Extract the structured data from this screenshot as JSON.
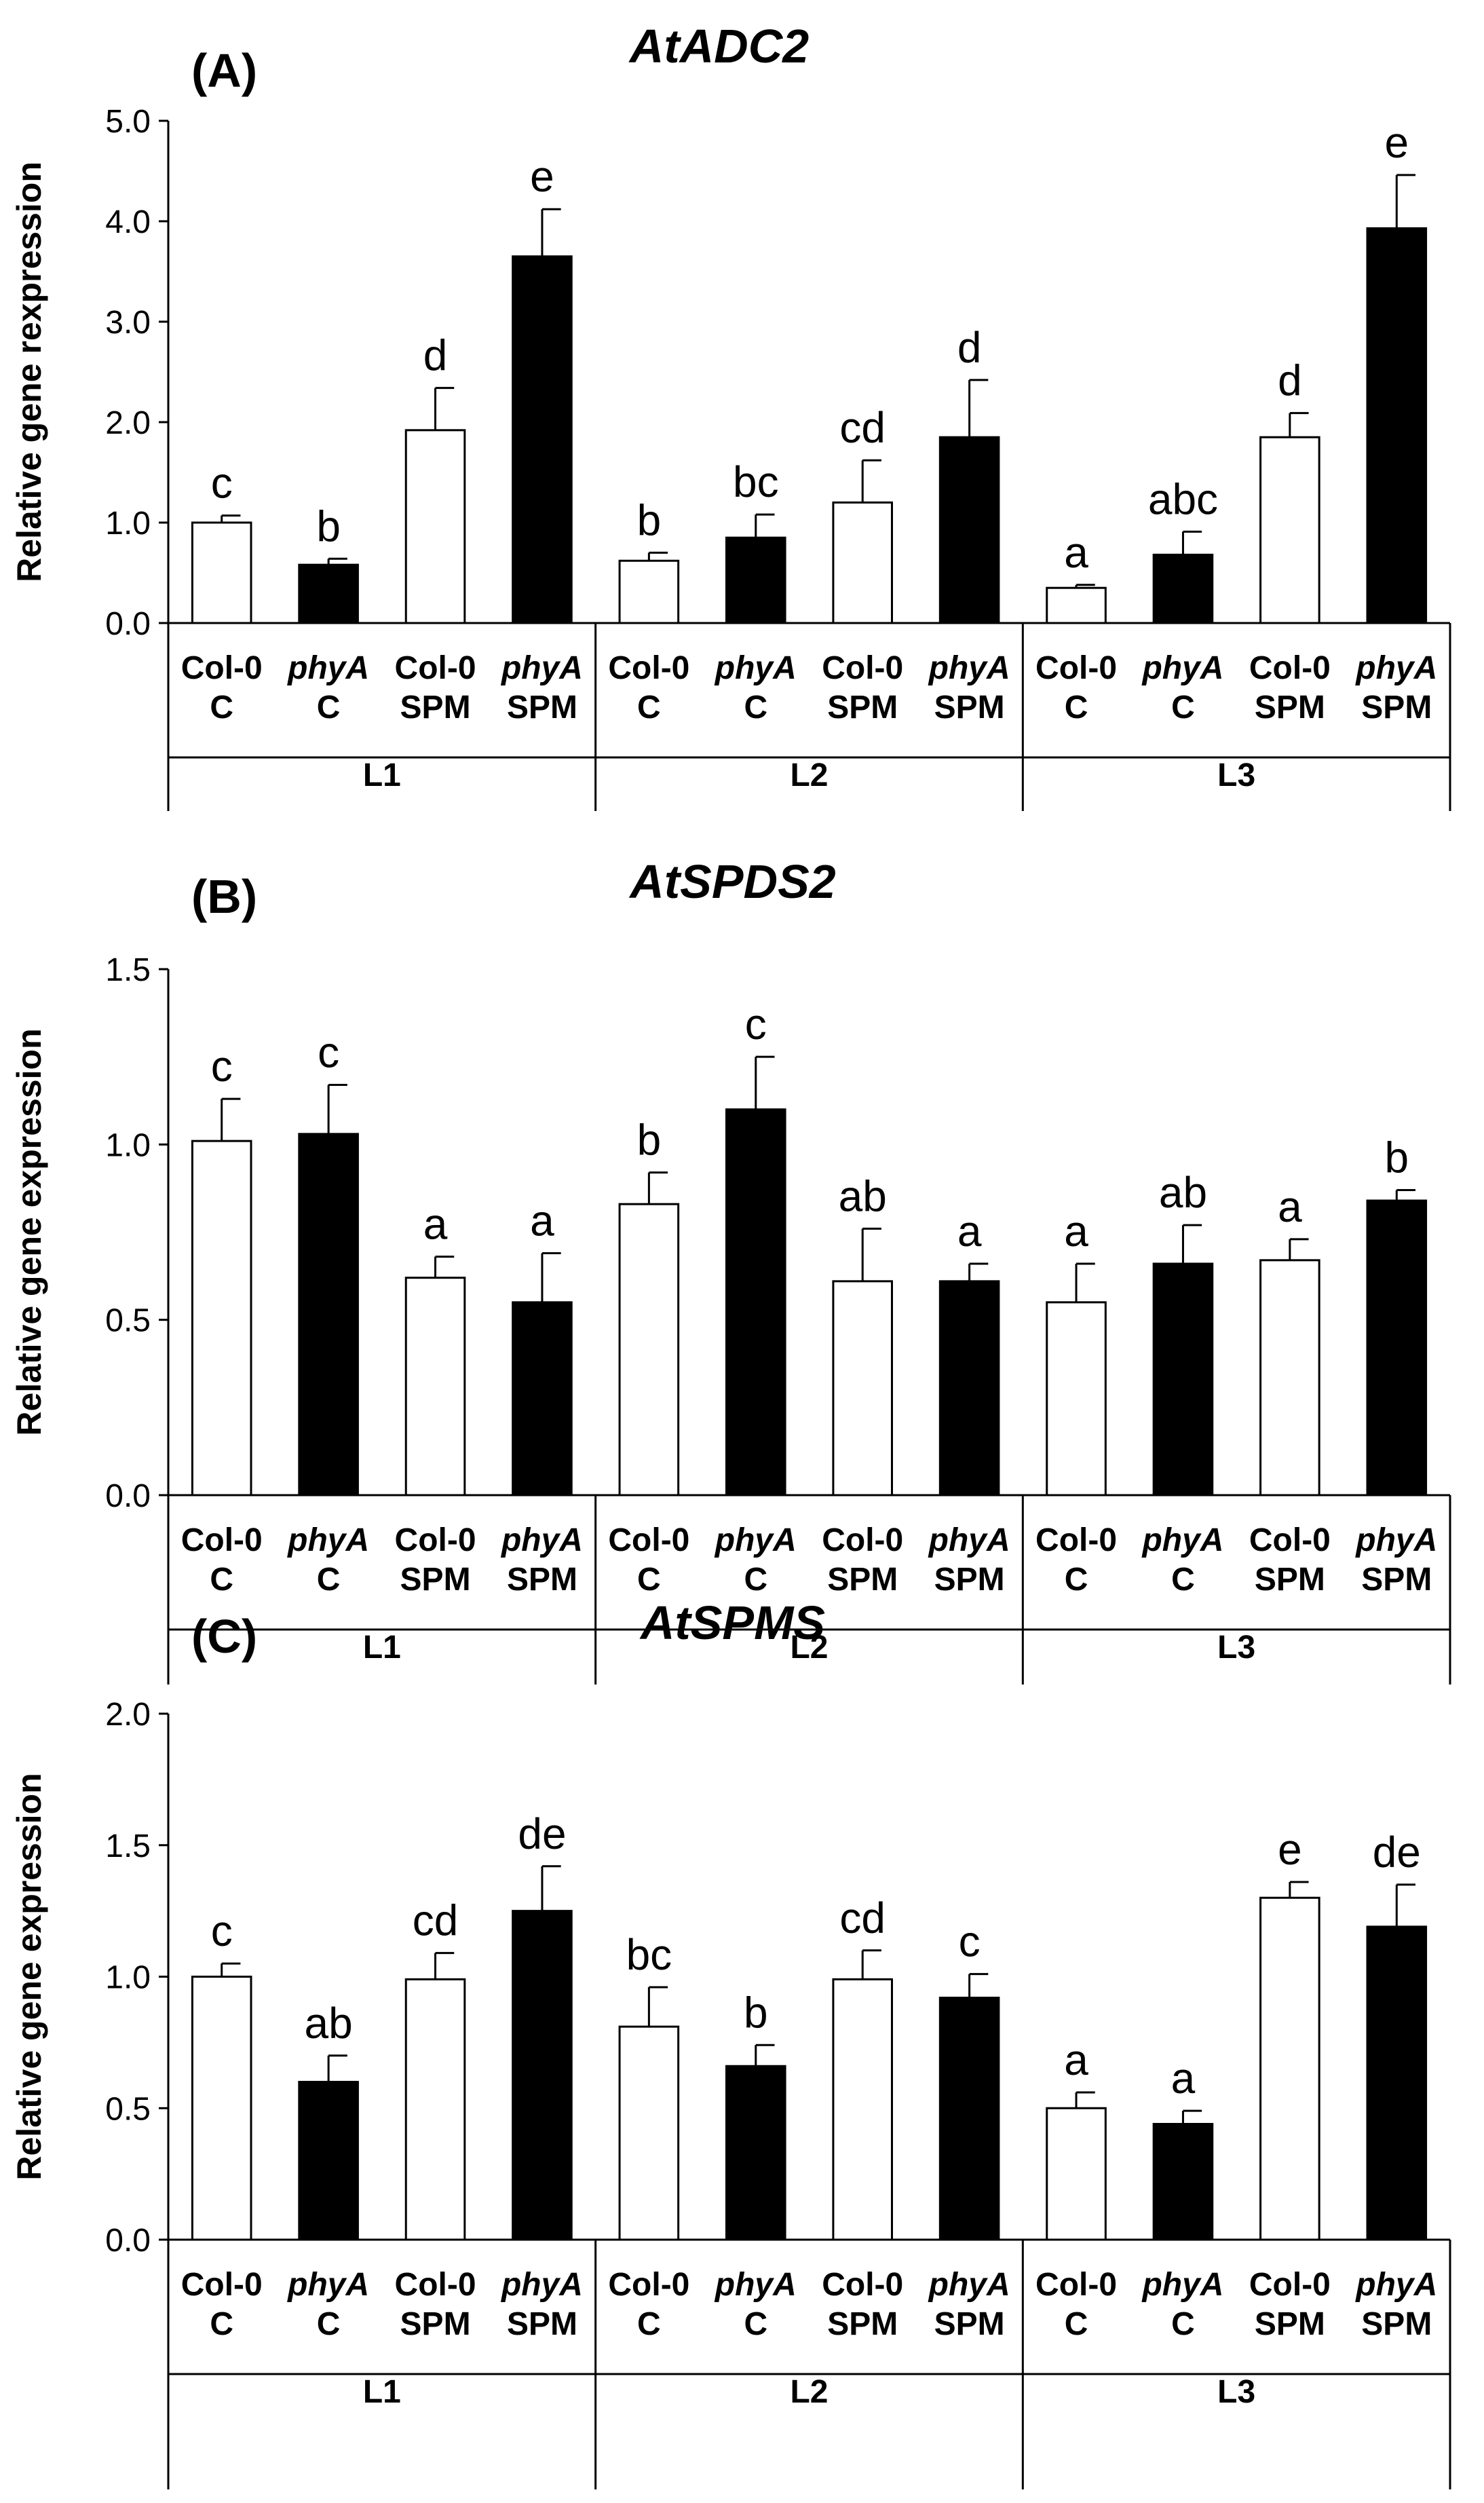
{
  "chart_data": [
    {
      "type": "bar",
      "panel_label": "(A)",
      "title": "AtADC2",
      "ylabel": "Relative gene rexpression",
      "ylim": [
        0,
        5
      ],
      "yticks": [
        "0.0",
        "1.0",
        "2.0",
        "3.0",
        "4.0",
        "5.0"
      ],
      "groups": [
        "L1",
        "L2",
        "L3"
      ],
      "categories": [
        {
          "genotype": "Col-0",
          "treatment": "C",
          "fill": "white"
        },
        {
          "genotype": "phyA",
          "treatment": "C",
          "fill": "black"
        },
        {
          "genotype": "Col-0",
          "treatment": "SPM",
          "fill": "white"
        },
        {
          "genotype": "phyA",
          "treatment": "SPM",
          "fill": "black"
        }
      ],
      "values": [
        [
          1.0,
          0.58,
          1.92,
          3.65
        ],
        [
          0.62,
          0.85,
          1.2,
          1.85
        ],
        [
          0.35,
          0.68,
          1.85,
          3.93
        ]
      ],
      "errors": [
        [
          0.07,
          0.06,
          0.42,
          0.47
        ],
        [
          0.08,
          0.23,
          0.42,
          0.57
        ],
        [
          0.03,
          0.23,
          0.24,
          0.53
        ]
      ],
      "letters": [
        [
          "c",
          "b",
          "d",
          "e"
        ],
        [
          "b",
          "bc",
          "cd",
          "d"
        ],
        [
          "a",
          "abc",
          "d",
          "e"
        ]
      ]
    },
    {
      "type": "bar",
      "panel_label": "(B)",
      "title": "AtSPDS2",
      "ylabel": "Relative gene expression",
      "ylim": [
        0,
        1.5
      ],
      "yticks": [
        "0.0",
        "0.5",
        "1.0",
        "1.5"
      ],
      "groups": [
        "L1",
        "L2",
        "L3"
      ],
      "categories": [
        {
          "genotype": "Col-0",
          "treatment": "C",
          "fill": "white"
        },
        {
          "genotype": "phyA",
          "treatment": "C",
          "fill": "black"
        },
        {
          "genotype": "Col-0",
          "treatment": "SPM",
          "fill": "white"
        },
        {
          "genotype": "phyA",
          "treatment": "SPM",
          "fill": "black"
        }
      ],
      "values": [
        [
          1.01,
          1.03,
          0.62,
          0.55
        ],
        [
          0.83,
          1.1,
          0.61,
          0.61
        ],
        [
          0.55,
          0.66,
          0.67,
          0.84
        ]
      ],
      "errors": [
        [
          0.12,
          0.14,
          0.06,
          0.14
        ],
        [
          0.09,
          0.15,
          0.15,
          0.05
        ],
        [
          0.11,
          0.11,
          0.06,
          0.03
        ]
      ],
      "letters": [
        [
          "c",
          "c",
          "a",
          "a"
        ],
        [
          "b",
          "c",
          "ab",
          "a"
        ],
        [
          "a",
          "ab",
          "a",
          "b"
        ]
      ]
    },
    {
      "type": "bar",
      "panel_label": "(C)",
      "title": "AtSPMS",
      "ylabel": "Relative gene expression",
      "ylim": [
        0,
        2.0
      ],
      "yticks": [
        "0.0",
        "0.5",
        "1.0",
        "1.5",
        "2.0"
      ],
      "groups": [
        "L1",
        "L2",
        "L3"
      ],
      "categories": [
        {
          "genotype": "Col-0",
          "treatment": "C",
          "fill": "white"
        },
        {
          "genotype": "phyA",
          "treatment": "C",
          "fill": "black"
        },
        {
          "genotype": "Col-0",
          "treatment": "SPM",
          "fill": "white"
        },
        {
          "genotype": "phyA",
          "treatment": "SPM",
          "fill": "black"
        }
      ],
      "values": [
        [
          1.0,
          0.6,
          0.99,
          1.25
        ],
        [
          0.81,
          0.66,
          0.99,
          0.92
        ],
        [
          0.5,
          0.44,
          1.3,
          1.19
        ]
      ],
      "errors": [
        [
          0.05,
          0.1,
          0.1,
          0.17
        ],
        [
          0.15,
          0.08,
          0.11,
          0.09
        ],
        [
          0.06,
          0.05,
          0.06,
          0.16
        ]
      ],
      "letters": [
        [
          "c",
          "ab",
          "cd",
          "de"
        ],
        [
          "bc",
          "b",
          "cd",
          "c"
        ],
        [
          "a",
          "a",
          "e",
          "de"
        ]
      ]
    }
  ]
}
